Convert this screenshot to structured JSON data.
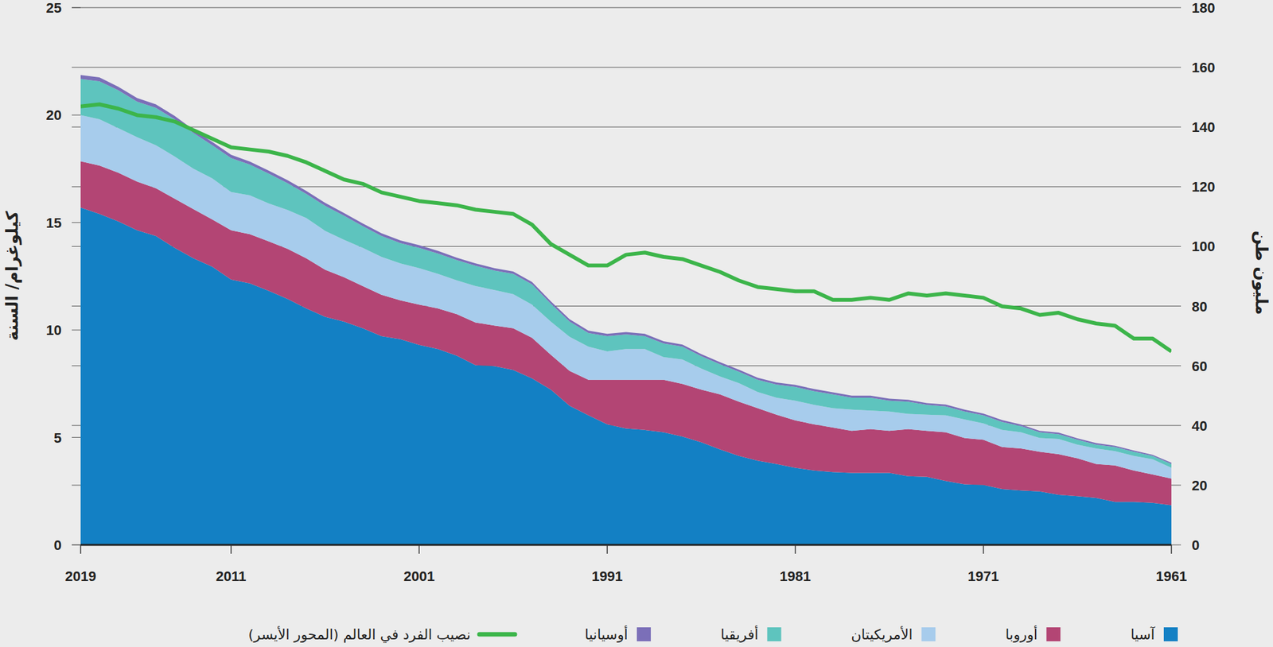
{
  "chart_data": {
    "type": "area",
    "stacked": true,
    "grid": true,
    "legend": "bottom",
    "y_label": "كيلوغرام/ السنة",
    "y2_label": "مليون طن",
    "x": [
      1961,
      1962,
      1963,
      1964,
      1965,
      1966,
      1967,
      1968,
      1969,
      1970,
      1971,
      1972,
      1973,
      1974,
      1975,
      1976,
      1977,
      1978,
      1979,
      1980,
      1981,
      1982,
      1983,
      1984,
      1985,
      1986,
      1987,
      1988,
      1989,
      1990,
      1991,
      1992,
      1993,
      1994,
      1995,
      1996,
      1997,
      1998,
      1999,
      2000,
      2001,
      2002,
      2003,
      2004,
      2005,
      2006,
      2007,
      2008,
      2009,
      2010,
      2011,
      2012,
      2013,
      2014,
      2015,
      2016,
      2017,
      2018,
      2019
    ],
    "xlim": [
      2019,
      1961
    ],
    "xticks": [
      2019,
      2011,
      2001,
      1991,
      1981,
      1971,
      1961
    ],
    "ylim": [
      0,
      25
    ],
    "yticks": [
      0,
      5,
      10,
      15,
      20,
      25
    ],
    "y2lim": [
      0,
      180
    ],
    "y2ticks": [
      0,
      20,
      40,
      60,
      80,
      100,
      120,
      140,
      160,
      180
    ],
    "series": [
      {
        "name": "آسيا",
        "type": "area",
        "axis": "y2",
        "color": "#1380c4",
        "values": [
          13.3,
          14.1,
          14.4,
          14.4,
          15.7,
          16.3,
          16.8,
          17.9,
          18.2,
          18.7,
          20.1,
          20.3,
          21.4,
          22.8,
          23.0,
          24.1,
          24.1,
          24.1,
          24.4,
          24.9,
          25.8,
          27.1,
          28.2,
          29.8,
          32.0,
          34.4,
          36.3,
          37.7,
          38.5,
          39.0,
          40.4,
          43.4,
          46.6,
          52.0,
          55.8,
          58.6,
          59.9,
          60.2,
          63.4,
          65.6,
          67.0,
          68.9,
          69.9,
          72.6,
          74.8,
          76.4,
          79.2,
          82.4,
          85.1,
          87.6,
          88.9,
          93.2,
          96.0,
          99.5,
          103.5,
          105.4,
          108.4,
          110.9,
          113.0
        ]
      },
      {
        "name": "أوروبا",
        "type": "area",
        "axis": "y2",
        "color": "#b34574",
        "values": [
          8.9,
          9.5,
          10.5,
          12.2,
          11.4,
          12.7,
          13.6,
          13.3,
          14.1,
          14.1,
          15.1,
          15.5,
          16.3,
          15.4,
          15.8,
          14.1,
          14.7,
          14.1,
          14.9,
          15.5,
          15.9,
          16.5,
          17.6,
          18.2,
          18.4,
          17.6,
          17.6,
          17.6,
          16.8,
          16.3,
          14.9,
          11.9,
          11.7,
          11.7,
          13.6,
          14.0,
          13.6,
          14.3,
          13.9,
          13.6,
          13.5,
          13.0,
          13.9,
          14.1,
          14.9,
          15.8,
          16.8,
          16.8,
          16.6,
          16.5,
          16.5,
          15.8,
          16.5,
          16.5,
          16.0,
          16.3,
          16.3,
          16.2,
          15.5
        ]
      },
      {
        "name": "الأمريكيتان",
        "type": "area",
        "axis": "y2",
        "color": "#a7ccec",
        "values": [
          3.6,
          5.1,
          4.9,
          4.8,
          5.2,
          4.6,
          5.1,
          4.6,
          5.4,
          5.7,
          5.5,
          6.2,
          5.7,
          5.4,
          5.1,
          6.5,
          6.2,
          7.1,
          6.5,
          6.5,
          6.6,
          5.7,
          5.4,
          6.2,
          6.0,
          7.1,
          8.2,
          7.6,
          10.3,
          10.3,
          9.5,
          11.1,
          11.4,
          11.1,
          11.1,
          11.4,
          11.9,
          12.2,
          11.3,
          11.6,
          12.2,
          12.4,
          12.7,
          12.8,
          12.5,
          13.0,
          13.5,
          13.0,
          12.7,
          13.0,
          12.8,
          13.8,
          13.5,
          14.1,
          14.4,
          14.9,
          14.9,
          15.5,
          15.5
        ]
      },
      {
        "name": "أفريقيا",
        "type": "area",
        "axis": "y2",
        "color": "#5ec4be",
        "values": [
          1.3,
          1.1,
          1.4,
          1.4,
          1.3,
          1.6,
          1.6,
          1.9,
          2.1,
          2.7,
          2.7,
          2.7,
          3.0,
          3.3,
          4.1,
          3.6,
          4.3,
          4.0,
          4.6,
          4.6,
          4.6,
          4.4,
          4.1,
          3.8,
          4.1,
          4.1,
          4.3,
          4.6,
          4.3,
          4.9,
          5.1,
          4.6,
          5.1,
          6.0,
          6.8,
          6.8,
          6.5,
          6.8,
          6.8,
          6.8,
          6.8,
          6.8,
          7.0,
          7.3,
          8.1,
          8.4,
          8.1,
          9.0,
          10.0,
          10.3,
          11.4,
          11.1,
          12.0,
          12.5,
          12.5,
          11.9,
          12.7,
          12.7,
          12.1
        ]
      },
      {
        "name": "أوسيانيا",
        "type": "area",
        "axis": "y2",
        "color": "#7b6fb8",
        "values": [
          0.4,
          0.4,
          0.4,
          0.4,
          0.5,
          0.5,
          0.5,
          0.5,
          0.5,
          0.6,
          0.6,
          0.6,
          0.6,
          0.6,
          0.6,
          0.7,
          0.7,
          0.7,
          0.7,
          0.7,
          0.7,
          0.7,
          0.7,
          0.7,
          0.7,
          0.7,
          0.7,
          0.7,
          0.8,
          0.8,
          0.8,
          0.8,
          0.8,
          0.8,
          0.8,
          0.8,
          0.8,
          0.8,
          0.8,
          0.9,
          0.9,
          0.9,
          0.9,
          0.9,
          0.9,
          1.0,
          1.0,
          1.0,
          1.0,
          1.0,
          1.1,
          1.1,
          1.1,
          1.1,
          1.2,
          1.2,
          1.2,
          1.3,
          1.3
        ]
      },
      {
        "name": "نصيب الفرد في العالم (المحور الأيسر)",
        "type": "line",
        "axis": "y",
        "color": "#3cb54a",
        "values": [
          9.0,
          9.6,
          9.6,
          10.2,
          10.3,
          10.5,
          10.8,
          10.7,
          11.0,
          11.1,
          11.5,
          11.6,
          11.7,
          11.6,
          11.7,
          11.4,
          11.5,
          11.4,
          11.4,
          11.8,
          11.8,
          11.9,
          12.0,
          12.3,
          12.7,
          13.0,
          13.3,
          13.4,
          13.6,
          13.5,
          13.0,
          13.0,
          13.5,
          14.0,
          14.9,
          15.4,
          15.5,
          15.6,
          15.8,
          15.9,
          16.0,
          16.2,
          16.4,
          16.8,
          17.0,
          17.4,
          17.8,
          18.1,
          18.3,
          18.4,
          18.5,
          18.9,
          19.3,
          19.7,
          19.9,
          20.0,
          20.3,
          20.5,
          20.4
        ]
      }
    ]
  }
}
